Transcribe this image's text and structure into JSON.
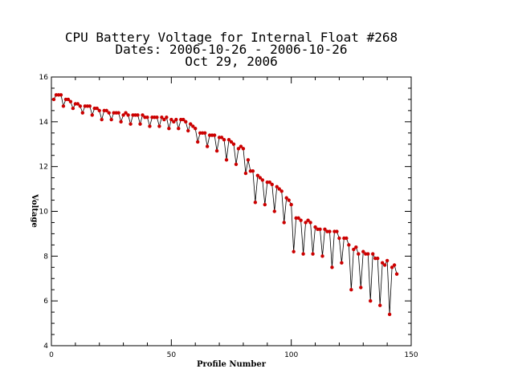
{
  "chart_data": {
    "type": "line",
    "title_lines": [
      "CPU Battery Voltage for Internal Float #268",
      "Dates:  2006-10-26 -  2006-10-26",
      "Oct 29, 2006"
    ],
    "xlabel": "Profile Number",
    "ylabel": "Voltage",
    "xlim": [
      0,
      150
    ],
    "ylim": [
      4,
      16
    ],
    "x_ticks": [
      0,
      50,
      100,
      150
    ],
    "y_ticks": [
      4,
      6,
      8,
      10,
      12,
      14,
      16
    ],
    "grid": false,
    "marker_color": "#cc0000",
    "line_color": "#000000",
    "series": [
      {
        "x": [
          1,
          2,
          3,
          4,
          5,
          6,
          7,
          8,
          9,
          10,
          11,
          12,
          13,
          14,
          15,
          16,
          17,
          18,
          19,
          20,
          21,
          22,
          23,
          24,
          25,
          26,
          27,
          28,
          29,
          30,
          31,
          32,
          33,
          34,
          35,
          36,
          37,
          38,
          39,
          40,
          41,
          42,
          43,
          44,
          45,
          46,
          47,
          48,
          49,
          50,
          51,
          52,
          53,
          54,
          55,
          56,
          57,
          58,
          59,
          60,
          61,
          62,
          63,
          64,
          65,
          66,
          67,
          68,
          69,
          70,
          71,
          72,
          73,
          74,
          75,
          76,
          77,
          78,
          79,
          80,
          81,
          82,
          83,
          84,
          85,
          86,
          87,
          88,
          89,
          90,
          91,
          92,
          93,
          94,
          95,
          96,
          97,
          98,
          99,
          100,
          101,
          102,
          103,
          104,
          105,
          106,
          107,
          108,
          109,
          110,
          111,
          112,
          113,
          114,
          115,
          116,
          117,
          118,
          119,
          120,
          121,
          122,
          123,
          124,
          125,
          126,
          127,
          128,
          129,
          130,
          131,
          132,
          133,
          134,
          135,
          136,
          137,
          138,
          139,
          140,
          141,
          142,
          143,
          144
        ],
        "y": [
          15.0,
          15.2,
          15.2,
          15.2,
          14.7,
          15.0,
          15.0,
          14.9,
          14.6,
          14.8,
          14.8,
          14.7,
          14.4,
          14.7,
          14.7,
          14.7,
          14.3,
          14.6,
          14.6,
          14.5,
          14.1,
          14.5,
          14.5,
          14.4,
          14.1,
          14.4,
          14.4,
          14.4,
          14.0,
          14.3,
          14.4,
          14.3,
          13.9,
          14.3,
          14.3,
          14.3,
          13.9,
          14.3,
          14.2,
          14.2,
          13.8,
          14.2,
          14.2,
          14.2,
          13.8,
          14.2,
          14.1,
          14.2,
          13.7,
          14.1,
          14.0,
          14.1,
          13.7,
          14.1,
          14.1,
          14.0,
          13.6,
          13.9,
          13.8,
          13.7,
          13.1,
          13.5,
          13.5,
          13.5,
          12.9,
          13.4,
          13.4,
          13.4,
          12.7,
          13.3,
          13.3,
          13.2,
          12.3,
          13.2,
          13.1,
          13.0,
          12.1,
          12.8,
          12.9,
          12.8,
          11.7,
          12.3,
          11.8,
          11.8,
          10.4,
          11.6,
          11.5,
          11.4,
          10.3,
          11.3,
          11.3,
          11.2,
          10.0,
          11.1,
          11.0,
          10.9,
          9.5,
          10.6,
          10.5,
          10.3,
          8.2,
          9.7,
          9.7,
          9.6,
          8.1,
          9.5,
          9.6,
          9.5,
          8.1,
          9.3,
          9.2,
          9.2,
          8.0,
          9.2,
          9.1,
          9.1,
          7.5,
          9.1,
          9.1,
          8.8,
          7.7,
          8.8,
          8.8,
          8.5,
          6.5,
          8.3,
          8.4,
          8.1,
          6.6,
          8.2,
          8.1,
          8.1,
          6.0,
          8.1,
          7.9,
          7.9,
          5.8,
          7.7,
          7.6,
          7.8,
          5.4,
          7.5,
          7.6,
          7.2
        ]
      }
    ]
  }
}
